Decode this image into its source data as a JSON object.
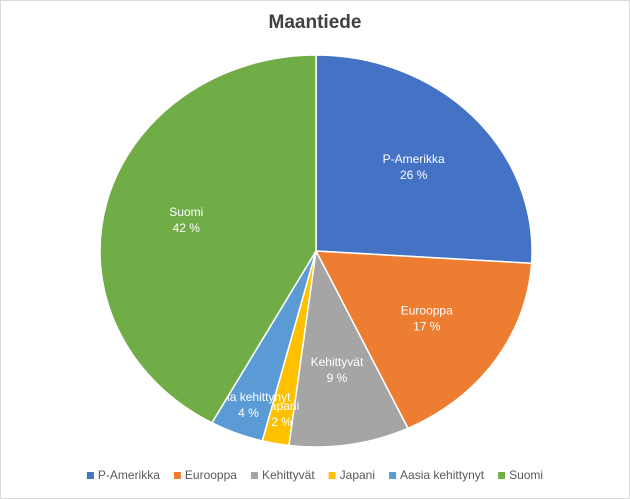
{
  "chart_data": {
    "type": "pie",
    "title": "Maantiede",
    "categories": [
      "P-Amerikka",
      "Eurooppa",
      "Kehittyvät",
      "Japani",
      "Aasia kehittynyt",
      "Suomi"
    ],
    "values": [
      26,
      17,
      9,
      2,
      4,
      42
    ],
    "value_labels": [
      "26 %",
      "17 %",
      "9 %",
      "2 %",
      "4 %",
      "42 %"
    ],
    "colors": [
      "#4472c4",
      "#ed7d31",
      "#a5a5a5",
      "#ffc000",
      "#5b9bd5",
      "#70ad47"
    ],
    "legend": "bottom"
  }
}
